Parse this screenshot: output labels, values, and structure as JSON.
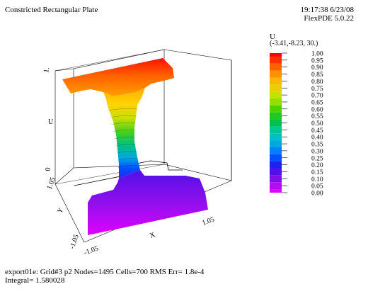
{
  "header": {
    "title": "Constricted Rectangular Plate",
    "time_date": "19:17:38 6/23/08",
    "version": "FlexPDE 5.0.22"
  },
  "legend": {
    "variable": "U",
    "view": "(-3.41,-8.23, 30.)",
    "levels": [
      "1.00",
      "0.95",
      "0.90",
      "0.85",
      "0.80",
      "0.75",
      "0.70",
      "0.65",
      "0.60",
      "0.55",
      "0.50",
      "0.45",
      "0.40",
      "0.35",
      "0.30",
      "0.25",
      "0.20",
      "0.15",
      "0.10",
      "0.05",
      "0.00"
    ],
    "colors": [
      "#ff0000",
      "#ff3000",
      "#ff6000",
      "#ff9000",
      "#ffb800",
      "#e8d000",
      "#c8e000",
      "#90e000",
      "#50d000",
      "#20c820",
      "#00c050",
      "#00c890",
      "#00c0c0",
      "#00a8e0",
      "#0080ff",
      "#0050ff",
      "#2020f0",
      "#5010e8",
      "#8010e8",
      "#b010f0",
      "#e000ff"
    ]
  },
  "chart_data": {
    "type": "surface",
    "title": "Constricted Rectangular Plate",
    "zlabel": "U",
    "xlabel": "X",
    "ylabel": "Y",
    "x_ticks": [
      "-1.05",
      "1.05"
    ],
    "y_ticks": [
      "-1.05",
      "1.05"
    ],
    "z_ticks": [
      "0",
      "1."
    ],
    "zlim": [
      0,
      1
    ]
  },
  "footer": {
    "line1": "export01e:  Grid#3  p2  Nodes=1495 Cells=700 RMS Err= 1.8e-4",
    "line2": "Integral=  1.580028"
  }
}
